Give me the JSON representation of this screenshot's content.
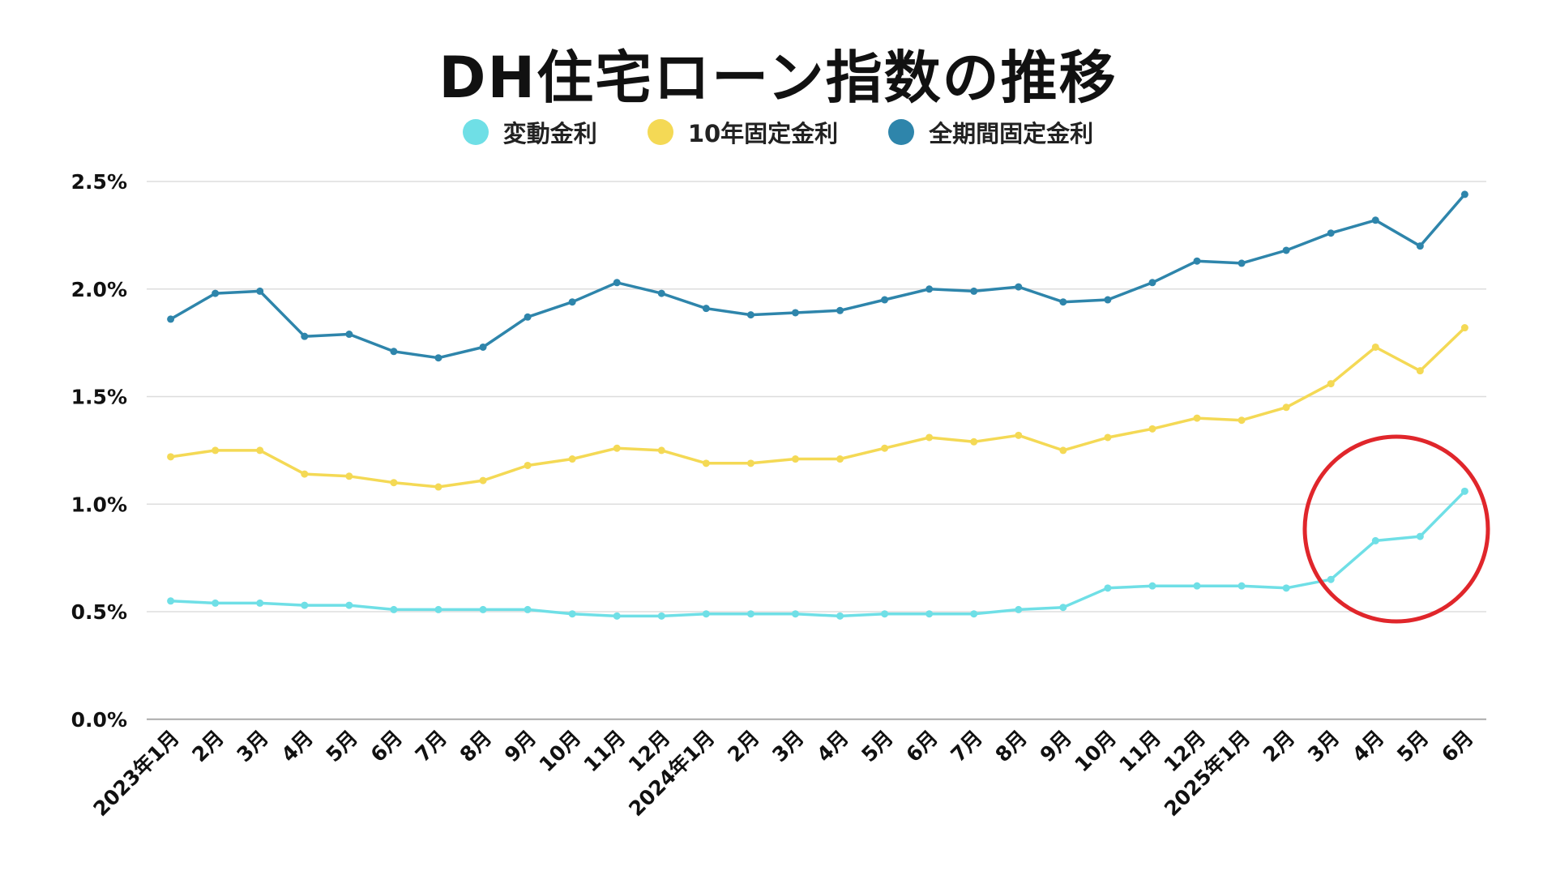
{
  "chart_data": {
    "type": "line",
    "title": "DH住宅ローン指数の推移",
    "xlabel": "",
    "ylabel": "",
    "categories": [
      "2023年1月",
      "2月",
      "3月",
      "4月",
      "5月",
      "6月",
      "7月",
      "8月",
      "9月",
      "10月",
      "11月",
      "12月",
      "2024年1月",
      "2月",
      "3月",
      "4月",
      "5月",
      "6月",
      "7月",
      "8月",
      "9月",
      "10月",
      "11月",
      "12月",
      "2025年1月",
      "2月",
      "3月",
      "4月",
      "5月",
      "6月"
    ],
    "ylim": [
      0,
      2.5
    ],
    "yticks": [
      "0.0%",
      "0.5%",
      "1.0%",
      "1.5%",
      "2.0%",
      "2.5%"
    ],
    "ytick_values": [
      0,
      0.5,
      1.0,
      1.5,
      2.0,
      2.5
    ],
    "grid": true,
    "legend_position": "top",
    "series": [
      {
        "name": "変動金利",
        "color": "#6fdfe6",
        "values": [
          0.55,
          0.54,
          0.54,
          0.53,
          0.53,
          0.51,
          0.51,
          0.51,
          0.51,
          0.49,
          0.48,
          0.48,
          0.49,
          0.49,
          0.49,
          0.48,
          0.49,
          0.49,
          0.49,
          0.51,
          0.52,
          0.61,
          0.62,
          0.62,
          0.62,
          0.61,
          0.65,
          0.83,
          0.85,
          1.06
        ]
      },
      {
        "name": "10年固定金利",
        "color": "#f4d955",
        "values": [
          1.22,
          1.25,
          1.25,
          1.14,
          1.13,
          1.1,
          1.08,
          1.11,
          1.18,
          1.21,
          1.26,
          1.25,
          1.19,
          1.19,
          1.21,
          1.21,
          1.26,
          1.31,
          1.29,
          1.32,
          1.25,
          1.31,
          1.35,
          1.4,
          1.39,
          1.45,
          1.56,
          1.73,
          1.62,
          1.82
        ]
      },
      {
        "name": "全期間固定金利",
        "color": "#2e85ab",
        "values": [
          1.86,
          1.98,
          1.99,
          1.78,
          1.79,
          1.71,
          1.68,
          1.73,
          1.87,
          1.94,
          2.03,
          1.98,
          1.91,
          1.88,
          1.89,
          1.9,
          1.95,
          2.0,
          1.99,
          2.01,
          1.94,
          1.95,
          2.03,
          2.13,
          2.12,
          2.18,
          2.26,
          2.32,
          2.2,
          2.44
        ]
      }
    ],
    "annotation": {
      "type": "circle",
      "color": "#e0262b",
      "highlight": "2025年3月〜6月 変動金利"
    }
  }
}
